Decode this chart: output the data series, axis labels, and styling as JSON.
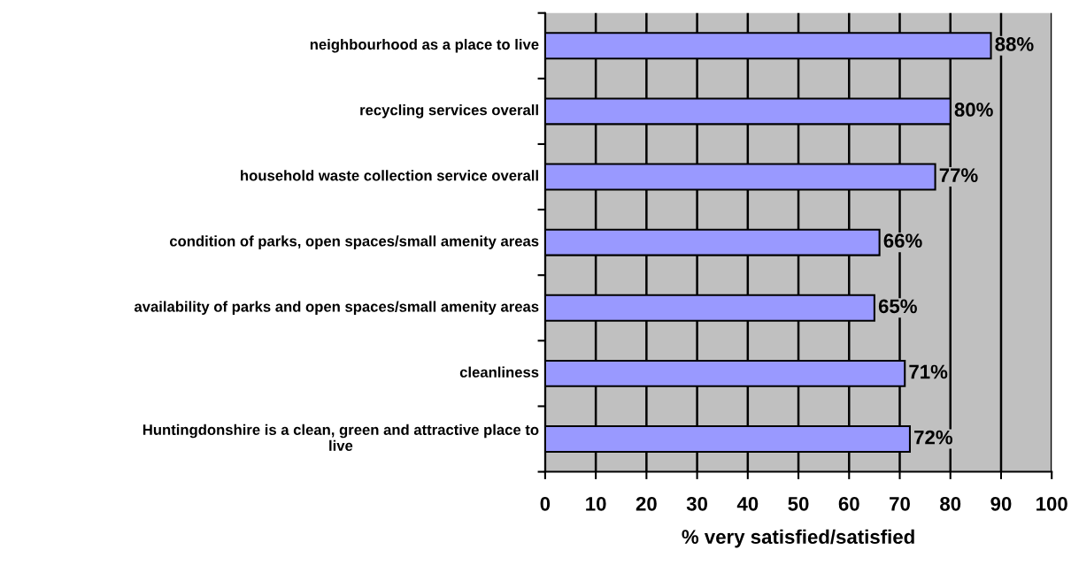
{
  "chart_data": {
    "type": "bar",
    "orientation": "horizontal",
    "xlabel": "% very satisfied/satisfied",
    "categories": [
      "neighbourhood as a place to live",
      "recycling services overall",
      "household waste collection service overall",
      "condition of parks, open spaces/small amenity areas",
      "availability of parks and open spaces/small amenity areas",
      "cleanliness",
      "Huntingdonshire is a clean, green and attractive place to\nlive"
    ],
    "values": [
      88,
      80,
      77,
      66,
      65,
      71,
      72
    ],
    "value_labels": [
      "88%",
      "80%",
      "77%",
      "66%",
      "65%",
      "71%",
      "72%"
    ],
    "color": "#9999ff",
    "xlim": [
      0,
      100
    ],
    "xticks": [
      0,
      10,
      20,
      30,
      40,
      50,
      60,
      70,
      80,
      90,
      100
    ],
    "grid": "x",
    "legend": false
  }
}
